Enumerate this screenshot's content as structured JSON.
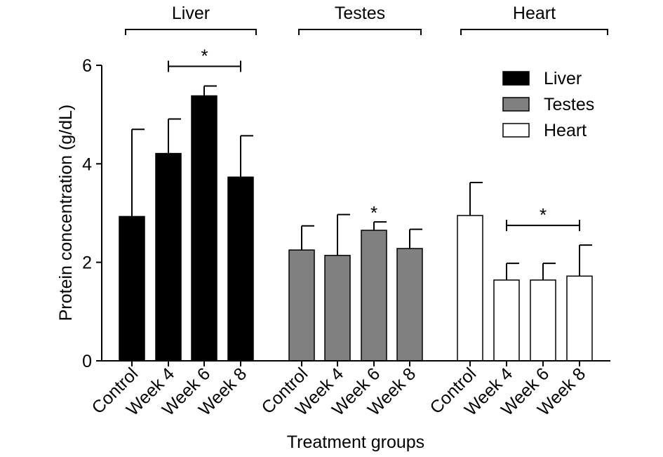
{
  "chart_data": {
    "type": "bar",
    "xlabel": "Treatment groups",
    "ylabel": "Protein concentration (g/dL)",
    "ylim": [
      0,
      6
    ],
    "yticks": [
      0,
      2,
      4,
      6
    ],
    "categories": [
      "Control",
      "Week 4",
      "Week 6",
      "Week 8"
    ],
    "groups": [
      {
        "name": "Liver",
        "color": "#000000",
        "values": [
          2.93,
          4.21,
          5.38,
          3.73
        ],
        "errors": [
          1.77,
          0.7,
          0.2,
          0.84
        ]
      },
      {
        "name": "Testes",
        "color": "#808080",
        "values": [
          2.25,
          2.14,
          2.65,
          2.28
        ],
        "errors": [
          0.49,
          0.83,
          0.17,
          0.39
        ]
      },
      {
        "name": "Heart",
        "color": "#ffffff",
        "values": [
          2.95,
          1.64,
          1.64,
          1.72
        ],
        "errors": [
          0.67,
          0.34,
          0.34,
          0.63
        ]
      }
    ],
    "significance": [
      {
        "group": 0,
        "from": 1,
        "to": 3,
        "label": "*"
      },
      {
        "group": 1,
        "from": 2,
        "to": 2,
        "label": "*"
      },
      {
        "group": 2,
        "from": 1,
        "to": 3,
        "label": "*"
      }
    ],
    "legend": {
      "position": "top-right",
      "entries": [
        "Liver",
        "Testes",
        "Heart"
      ]
    },
    "grid": false
  }
}
